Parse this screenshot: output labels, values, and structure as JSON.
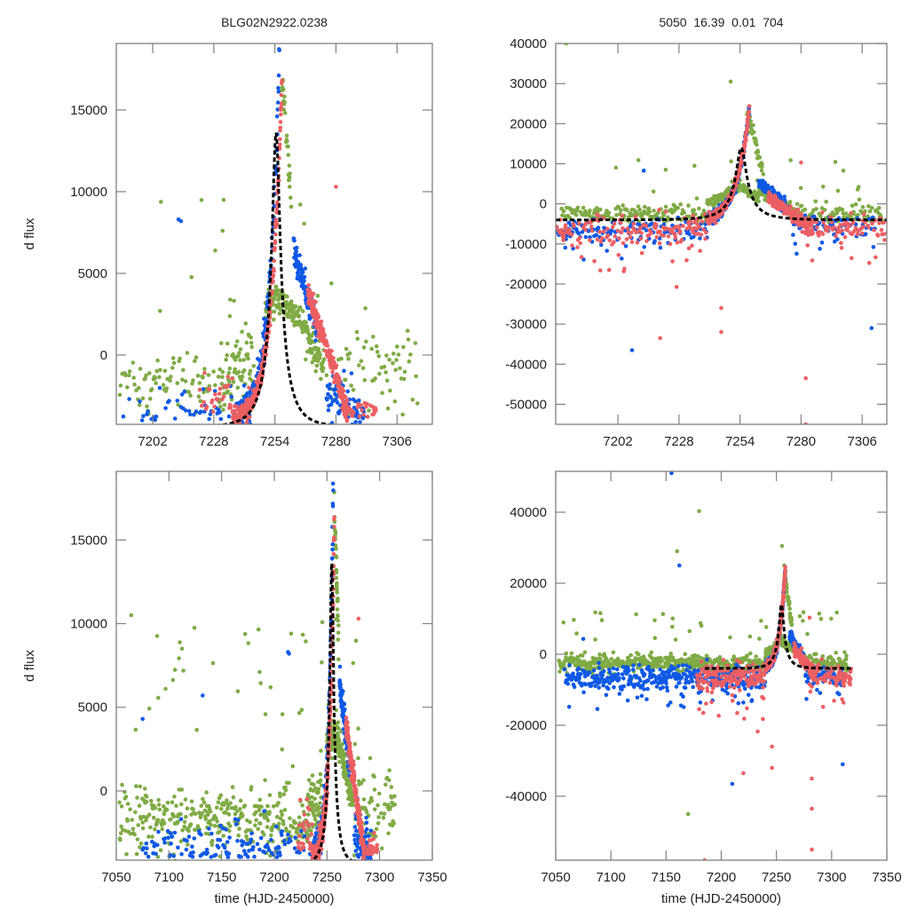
{
  "titles": {
    "left": "BLG02N2922.0238",
    "right": "5050  16.39  0.01  704"
  },
  "colors": {
    "green": "#7fab45",
    "blue": "#0f59e6",
    "red": "#ec5f63",
    "model": "#000000",
    "frame": "#808080"
  },
  "chart_data": [
    {
      "id": "top-left",
      "type": "scatter",
      "title": "BLG02N2922.0238",
      "xlabel": "",
      "ylabel": "d flux",
      "xlim": [
        7186.5,
        7321
      ],
      "ylim": [
        -4240,
        19070
      ],
      "xticks": [
        7202,
        7228,
        7254,
        7280,
        7306
      ],
      "yticks": [
        0,
        5000,
        10000,
        15000
      ],
      "grid": false,
      "model": {
        "t0": 7254.5,
        "peak": 13600,
        "base": -4400,
        "tE": 9.5,
        "tmin": 7186.5,
        "tmax": 7321
      },
      "series": [
        {
          "name": "green",
          "color_key": "green",
          "mode": "green_tl"
        },
        {
          "name": "blue",
          "color_key": "blue",
          "mode": "blue_tl"
        },
        {
          "name": "red",
          "color_key": "red",
          "mode": "red_tl"
        }
      ]
    },
    {
      "id": "top-right",
      "type": "scatter",
      "title": "5050  16.39  0.01  704",
      "xlabel": "",
      "ylabel": "",
      "xlim": [
        7175.5,
        7316.5
      ],
      "ylim": [
        -55000,
        40000
      ],
      "xticks": [
        7202,
        7228,
        7254,
        7280,
        7306
      ],
      "yticks": [
        -50000,
        -40000,
        -30000,
        -20000,
        -10000,
        0,
        10000,
        20000,
        30000,
        40000
      ],
      "grid": false,
      "model": {
        "t0": 7254.5,
        "peak": 14000,
        "base": -4000,
        "tE": 12,
        "tmin": 7175.5,
        "tmax": 7316.5
      },
      "series": [
        {
          "name": "green",
          "color_key": "green",
          "mode": "green_tr"
        },
        {
          "name": "blue",
          "color_key": "blue",
          "mode": "blue_tr"
        },
        {
          "name": "red",
          "color_key": "red",
          "mode": "red_tr"
        }
      ]
    },
    {
      "id": "bottom-left",
      "type": "scatter",
      "title": "",
      "xlabel": "time (HJD-2450000)",
      "ylabel": "d flux",
      "xlim": [
        7050,
        7350
      ],
      "ylim": [
        -4140,
        19100
      ],
      "xticks": [
        7050,
        7100,
        7150,
        7200,
        7250,
        7300,
        7350
      ],
      "yticks": [
        0,
        5000,
        10000,
        15000
      ],
      "grid": false,
      "model": {
        "t0": 7254.5,
        "peak": 13600,
        "base": -4400,
        "tE": 9.5,
        "tmin": 7185,
        "tmax": 7320
      },
      "series": [
        {
          "name": "green",
          "color_key": "green",
          "mode": "green_bl"
        },
        {
          "name": "blue",
          "color_key": "blue",
          "mode": "blue_bl"
        },
        {
          "name": "red",
          "color_key": "red",
          "mode": "red_bl"
        }
      ]
    },
    {
      "id": "bottom-right",
      "type": "scatter",
      "title": "",
      "xlabel": "time (HJD-2450000)",
      "ylabel": "",
      "xlim": [
        7050,
        7350
      ],
      "ylim": [
        -58000,
        51500
      ],
      "xticks": [
        7050,
        7100,
        7150,
        7200,
        7250,
        7300,
        7350
      ],
      "yticks": [
        -40000,
        -20000,
        0,
        20000,
        40000
      ],
      "grid": false,
      "model": {
        "t0": 7254.5,
        "peak": 14000,
        "base": -4000,
        "tE": 12,
        "tmin": 7185,
        "tmax": 7320
      },
      "series": [
        {
          "name": "green",
          "color_key": "green",
          "mode": "green_br"
        },
        {
          "name": "blue",
          "color_key": "blue",
          "mode": "blue_br"
        },
        {
          "name": "red",
          "color_key": "red",
          "mode": "red_br"
        }
      ]
    }
  ]
}
